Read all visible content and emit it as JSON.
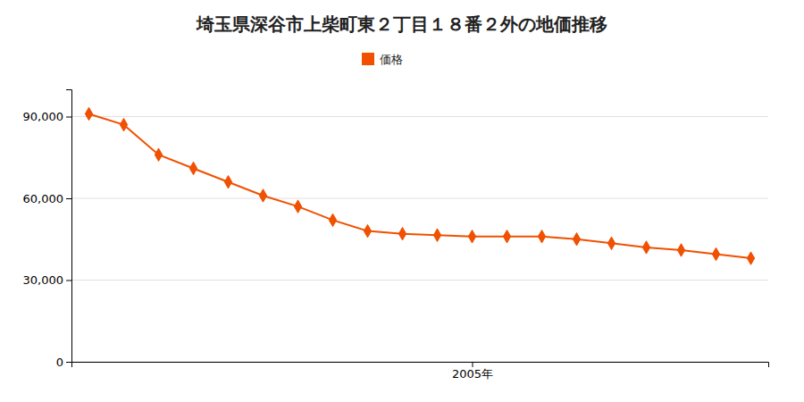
{
  "chart_data": {
    "type": "line",
    "title": "埼玉県深谷市上柴町東２丁目１８番２外の地価推移",
    "x": [
      1994,
      1995,
      1996,
      1997,
      1998,
      1999,
      2000,
      2001,
      2002,
      2003,
      2004,
      2005,
      2006,
      2007,
      2008,
      2009,
      2010,
      2011,
      2012,
      2013
    ],
    "series": [
      {
        "name": "価格",
        "color": "#f05000",
        "marker": "diamond",
        "values": [
          91000,
          87000,
          76000,
          71000,
          66000,
          61000,
          57000,
          52000,
          48000,
          47000,
          46500,
          46000,
          46000,
          46000,
          45000,
          43500,
          42000,
          41000,
          39500,
          38000
        ]
      }
    ],
    "xlim": [
      1993.5,
      2013.5
    ],
    "xticks": [
      {
        "value": 2005,
        "label": "2005年"
      }
    ],
    "ylim": [
      0,
      100000
    ],
    "yticks": [
      0,
      {
        "value": 30000,
        "label": "30,000"
      },
      {
        "value": 60000,
        "label": "60,000"
      },
      {
        "value": 90000,
        "label": "90,000"
      }
    ],
    "grid": true,
    "legend": "top"
  }
}
